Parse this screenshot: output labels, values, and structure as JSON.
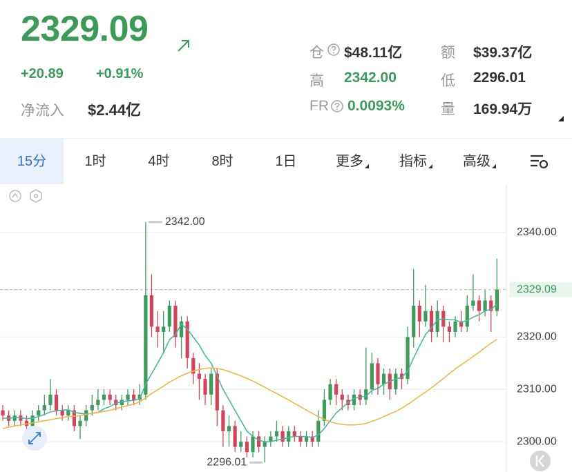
{
  "header": {
    "price": "2329.09",
    "change": "+20.89",
    "change_pct": "+0.91%",
    "net_inflow_label": "净流入",
    "net_inflow": "$2.44亿"
  },
  "stats": [
    {
      "label": "仓",
      "value": "$48.11亿"
    },
    {
      "label": "额",
      "value": "$39.37亿"
    },
    {
      "label": "高",
      "value": "2342.00"
    },
    {
      "label": "低",
      "value": "2296.01"
    },
    {
      "label": "FR",
      "value": "0.0093%"
    },
    {
      "label": "量",
      "value": "169.94万"
    }
  ],
  "tabs": [
    "15分",
    "1时",
    "4时",
    "8时",
    "1日",
    "更多",
    "指标",
    "高级"
  ],
  "chart_data": {
    "type": "candlestick",
    "up_color": "#3f9a5c",
    "down_color": "#d0455c",
    "open": [
      2306,
      2305,
      2304,
      2305,
      2304,
      2303,
      2305,
      2306,
      2307,
      2309,
      2306,
      2305,
      2306,
      2303,
      2304,
      2306,
      2307,
      2308,
      2309,
      2308,
      2307,
      2308,
      2309,
      2308,
      2309,
      2328,
      2322,
      2321,
      2322,
      2326,
      2320,
      2323,
      2316,
      2313,
      2312,
      2309,
      2313,
      2306,
      2302,
      2303,
      2299,
      2300,
      2298,
      2301,
      2299,
      2300,
      2301,
      2302,
      2300,
      2302,
      2301,
      2300,
      2301,
      2300,
      2304,
      2308,
      2311,
      2309,
      2308,
      2307,
      2309,
      2308,
      2310,
      2315,
      2311,
      2313,
      2310,
      2313,
      2312,
      2320,
      2326,
      2323,
      2325,
      2321,
      2325,
      2322,
      2321,
      2323,
      2322,
      2326,
      2327,
      2325,
      2327,
      2325
    ],
    "high": [
      2307,
      2306,
      2306,
      2306,
      2305,
      2306,
      2307,
      2309,
      2312,
      2310,
      2307,
      2307,
      2307,
      2305,
      2307,
      2309,
      2310,
      2310,
      2310,
      2309,
      2309,
      2310,
      2310,
      2311,
      2342,
      2332,
      2325,
      2325,
      2327,
      2327,
      2324,
      2324,
      2317,
      2315,
      2313,
      2314,
      2314,
      2307,
      2305,
      2304,
      2302,
      2301,
      2302,
      2302,
      2301,
      2302,
      2304,
      2303,
      2303,
      2303,
      2302,
      2302,
      2302,
      2306,
      2310,
      2312,
      2312,
      2310,
      2309,
      2310,
      2310,
      2318,
      2317,
      2316,
      2314,
      2314,
      2314,
      2314,
      2322,
      2333,
      2327,
      2330,
      2326,
      2327,
      2326,
      2323,
      2324,
      2325,
      2328,
      2332,
      2328,
      2329,
      2328,
      2335
    ],
    "low": [
      2304,
      2303,
      2303,
      2303,
      2302,
      2302,
      2304,
      2305,
      2306,
      2305,
      2304,
      2304,
      2302,
      2300.5,
      2303,
      2305,
      2306,
      2307,
      2307,
      2306,
      2306,
      2307,
      2307,
      2307,
      2308,
      2320,
      2318,
      2317,
      2321,
      2318,
      2316,
      2314,
      2311,
      2308,
      2307,
      2307,
      2303,
      2299,
      2299,
      2298,
      2298,
      2297,
      2297,
      2298,
      2296.01,
      2299,
      2300,
      2299,
      2299,
      2300,
      2299,
      2299,
      2299,
      2299,
      2303,
      2307,
      2307,
      2306,
      2306,
      2306,
      2307,
      2307,
      2309,
      2309,
      2309,
      2308,
      2309,
      2310,
      2311,
      2318,
      2320,
      2322,
      2319,
      2320,
      2319,
      2319,
      2320,
      2321,
      2321,
      2325,
      2323,
      2324,
      2321,
      2324
    ],
    "close": [
      2305,
      2304,
      2305,
      2304,
      2303,
      2305,
      2306,
      2307,
      2309,
      2306,
      2305,
      2306,
      2303,
      2304,
      2306,
      2307,
      2308,
      2309,
      2308,
      2307,
      2308,
      2309,
      2308,
      2309,
      2328,
      2322,
      2321,
      2322,
      2326,
      2320,
      2323,
      2316,
      2313,
      2312,
      2309,
      2313,
      2306,
      2302,
      2303,
      2299,
      2300,
      2298,
      2301,
      2299,
      2300,
      2301,
      2302,
      2300,
      2302,
      2301,
      2300,
      2301,
      2300,
      2304,
      2308,
      2311,
      2309,
      2308,
      2307,
      2309,
      2308,
      2310,
      2315,
      2311,
      2313,
      2310,
      2313,
      2312,
      2320,
      2326,
      2323,
      2325,
      2321,
      2325,
      2322,
      2321,
      2323,
      2322,
      2326,
      2327,
      2325,
      2327,
      2325,
      2329.09
    ],
    "lines": [
      {
        "color": "#4db3a3",
        "values": [
          2304.5,
          2304.5,
          2304.6,
          2304.6,
          2304.4,
          2304.5,
          2304.8,
          2305.2,
          2305.7,
          2305.9,
          2306,
          2306.1,
          2305.6,
          2305.4,
          2305.3,
          2305.4,
          2305.6,
          2306.3,
          2306.7,
          2307.4,
          2307.6,
          2307.8,
          2307.9,
          2308.2,
          2311,
          2313,
          2315,
          2317,
          2319.5,
          2320.5,
          2322.5,
          2321.5,
          2320,
          2318.5,
          2316.5,
          2315,
          2312.5,
          2310,
          2308,
          2306,
          2304,
          2302,
          2301,
          2300.3,
          2300,
          2300,
          2300.3,
          2300.5,
          2300.8,
          2301,
          2301,
          2301,
          2300.8,
          2301.3,
          2302.5,
          2304,
          2305.5,
          2306.5,
          2307.5,
          2308.3,
          2308.5,
          2308.7,
          2309.8,
          2310.2,
          2311,
          2311.5,
          2312,
          2312.3,
          2313.5,
          2316,
          2318.3,
          2320.5,
          2321.8,
          2323.3,
          2323.5,
          2323.3,
          2323.3,
          2322.8,
          2323.2,
          2323.8,
          2324.3,
          2325,
          2325.3,
          2326.3
        ]
      },
      {
        "color": "#e8b84b",
        "values": [
          2302.5,
          2302.8,
          2303,
          2303.2,
          2303.4,
          2303.6,
          2303.8,
          2304,
          2304.2,
          2304.4,
          2304.6,
          2304.8,
          2304.9,
          2305,
          2305.2,
          2305.4,
          2305.6,
          2305.8,
          2306,
          2306.3,
          2306.6,
          2306.9,
          2307.2,
          2307.6,
          2308.4,
          2309.2,
          2309.9,
          2310.6,
          2311.4,
          2312,
          2312.6,
          2313.1,
          2313.5,
          2313.8,
          2314,
          2314.1,
          2314,
          2313.8,
          2313.4,
          2313,
          2312.6,
          2312.1,
          2311.6,
          2311,
          2310.4,
          2309.8,
          2309.2,
          2308.6,
          2308,
          2307.3,
          2306.7,
          2306,
          2305.4,
          2304.8,
          2304.3,
          2303.8,
          2303.5,
          2303.3,
          2303.2,
          2303.2,
          2303.3,
          2303.5,
          2303.9,
          2304.3,
          2304.8,
          2305.3,
          2305.8,
          2306.4,
          2307.1,
          2307.9,
          2308.7,
          2309.5,
          2310.3,
          2311.2,
          2312.1,
          2313,
          2313.9,
          2314.7,
          2315.5,
          2316.3,
          2317.1,
          2318,
          2318.8,
          2319.6
        ]
      }
    ],
    "ylim": [
      2294.2,
      2349.1
    ],
    "yticks": [
      {
        "value": 2300,
        "label": "2300.00"
      },
      {
        "value": 2310,
        "label": "2310.00"
      },
      {
        "value": 2320,
        "label": "2320.00"
      },
      {
        "value": 2340,
        "label": "2340.00"
      }
    ],
    "grid": true,
    "last_price": {
      "value": 2329.09,
      "label": "2329.09"
    },
    "high_mark": {
      "value": 2342,
      "label": "2342.00"
    },
    "low_mark": {
      "value": 2296.01,
      "label": "2296.01"
    }
  }
}
